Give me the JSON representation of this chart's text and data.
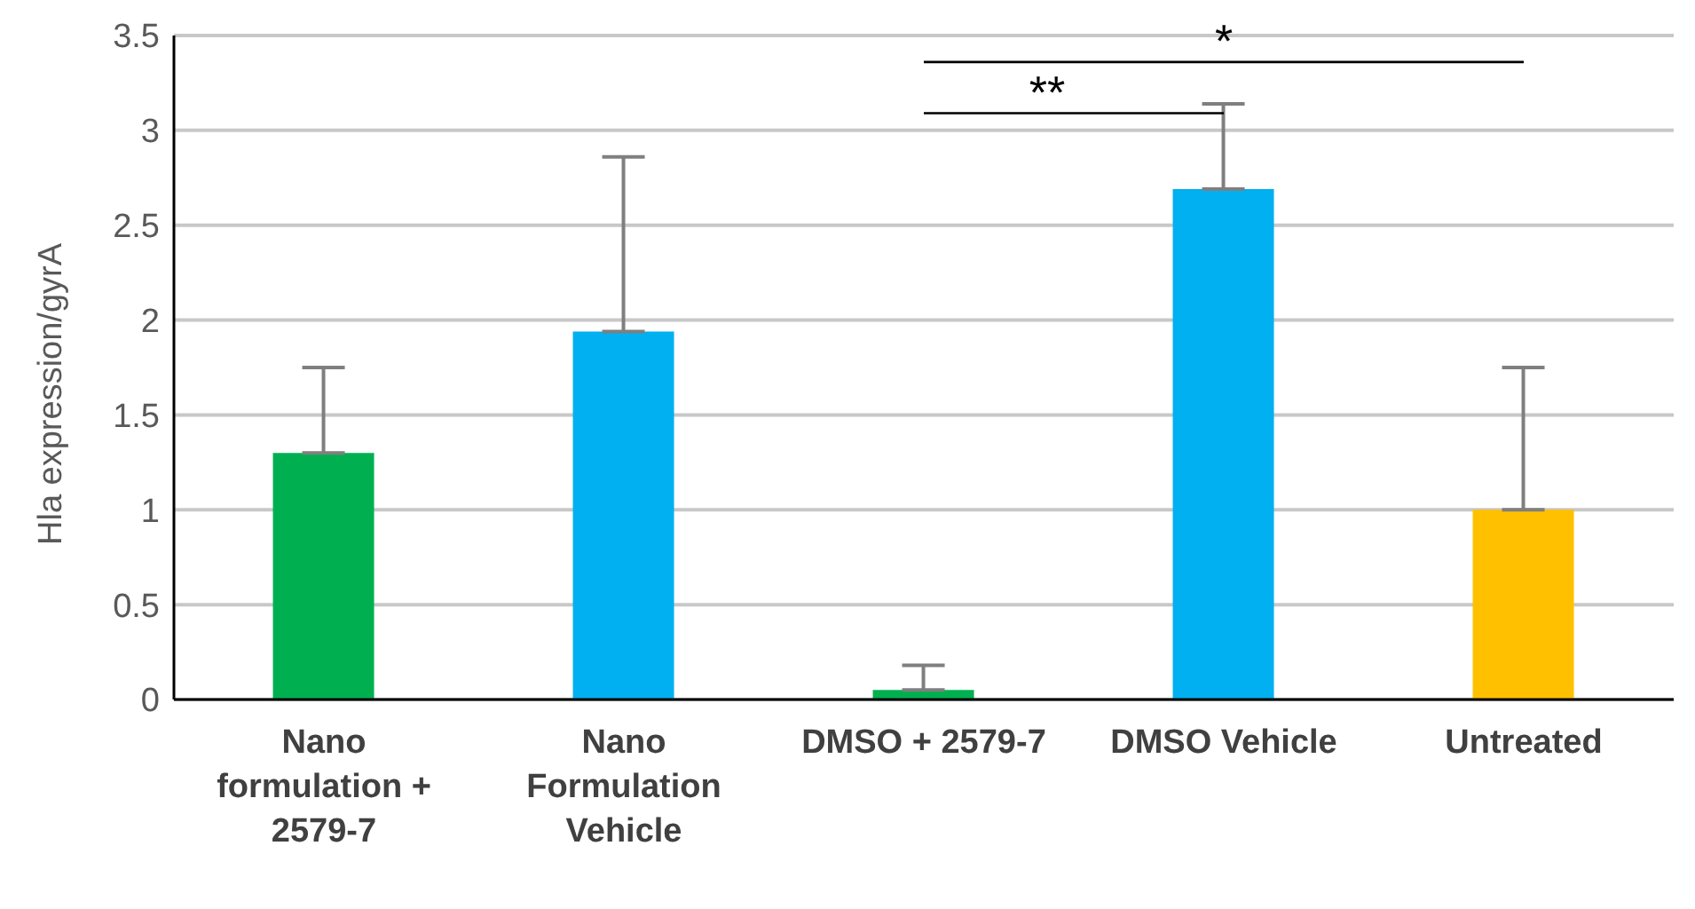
{
  "chart_data": {
    "type": "bar",
    "ylabel": "Hla expression/gyrA",
    "categories": [
      "Nano formulation + 2579-7",
      "Nano Formulation Vehicle",
      "DMSO + 2579-7",
      "DMSO Vehicle",
      "Untreated"
    ],
    "values": [
      1.3,
      1.94,
      0.05,
      2.69,
      1.0
    ],
    "colors": [
      "#00b050",
      "#00b0f0",
      "#00b050",
      "#00b0f0",
      "#ffc000"
    ],
    "errors": [
      [
        1.3,
        1.75
      ],
      [
        1.94,
        2.86
      ],
      [
        0.05,
        0.18
      ],
      [
        2.69,
        3.14
      ],
      [
        1.0,
        1.75
      ]
    ],
    "ylim": [
      0,
      3.5
    ],
    "yticks": [
      0,
      0.5,
      1,
      1.5,
      2,
      2.5,
      3,
      3.5
    ],
    "grid": "y",
    "annotations": [
      "*",
      "**"
    ]
  }
}
